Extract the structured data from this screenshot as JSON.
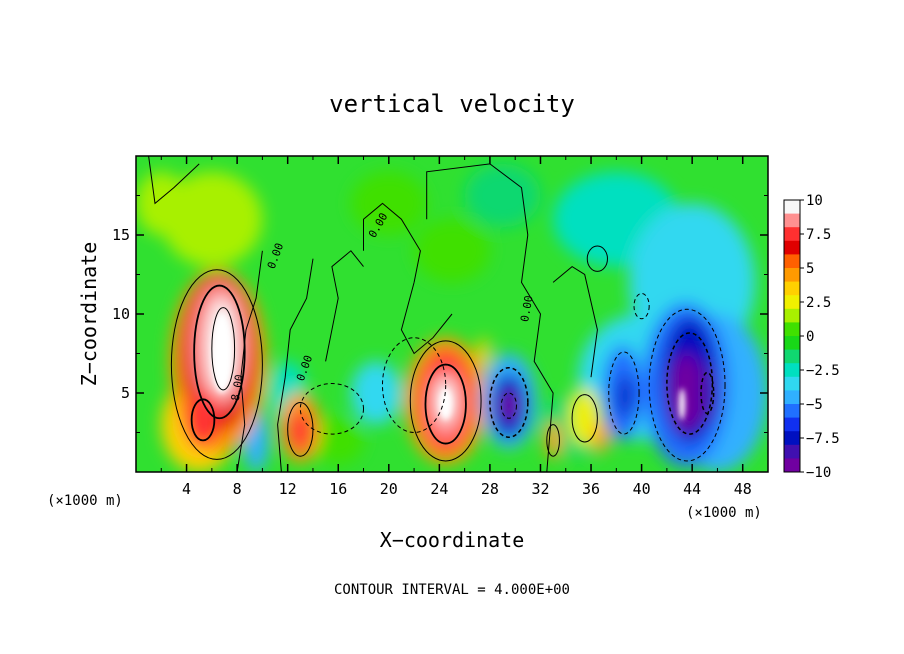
{
  "chart_data": {
    "type": "heatmap",
    "title": "vertical velocity",
    "xlabel": "X−coordinate",
    "ylabel": "Z−coordinate",
    "x_unit": "(×1000 m)",
    "x_ticks": [
      "4",
      "8",
      "12",
      "16",
      "20",
      "24",
      "28",
      "32",
      "36",
      "40",
      "44",
      "48"
    ],
    "y_ticks": [
      "5",
      "10",
      "15"
    ],
    "xlim": [
      0,
      50
    ],
    "ylim": [
      0,
      20
    ],
    "colorbar": {
      "labels": [
        "10",
        "7.5",
        "5",
        "2.5",
        "0",
        "−2.5",
        "−5",
        "−7.5",
        "−10"
      ],
      "range": [
        -10,
        10
      ],
      "colors": [
        "#f8f8f8",
        "#ff9090",
        "#ff3030",
        "#e00000",
        "#ff6000",
        "#ff9a00",
        "#ffd000",
        "#f0f000",
        "#a8f000",
        "#40e000",
        "#18d818",
        "#10d870",
        "#00e0c0",
        "#30d8f0",
        "#30b0ff",
        "#2070ff",
        "#1030f0",
        "#0010c0",
        "#4010b0",
        "#7000a0"
      ]
    },
    "features": [
      {
        "x": 6.5,
        "z": 7.5,
        "w": 11,
        "type": "updraft"
      },
      {
        "x": 13,
        "z": 2.5,
        "w": 6,
        "type": "updraft"
      },
      {
        "x": 24.5,
        "z": 4.5,
        "w": 9,
        "type": "updraft"
      },
      {
        "x": 29.5,
        "z": 4.5,
        "w": -8,
        "type": "downdraft"
      },
      {
        "x": 38.5,
        "z": 5,
        "w": -6,
        "type": "downdraft"
      },
      {
        "x": 43.5,
        "z": 5.5,
        "w": -9,
        "type": "downdraft"
      }
    ],
    "contour_labels": [
      "0.00",
      "0.00",
      "0.00",
      "0.00",
      "8.00"
    ],
    "footnote": "CONTOUR INTERVAL = 4.000E+00"
  }
}
